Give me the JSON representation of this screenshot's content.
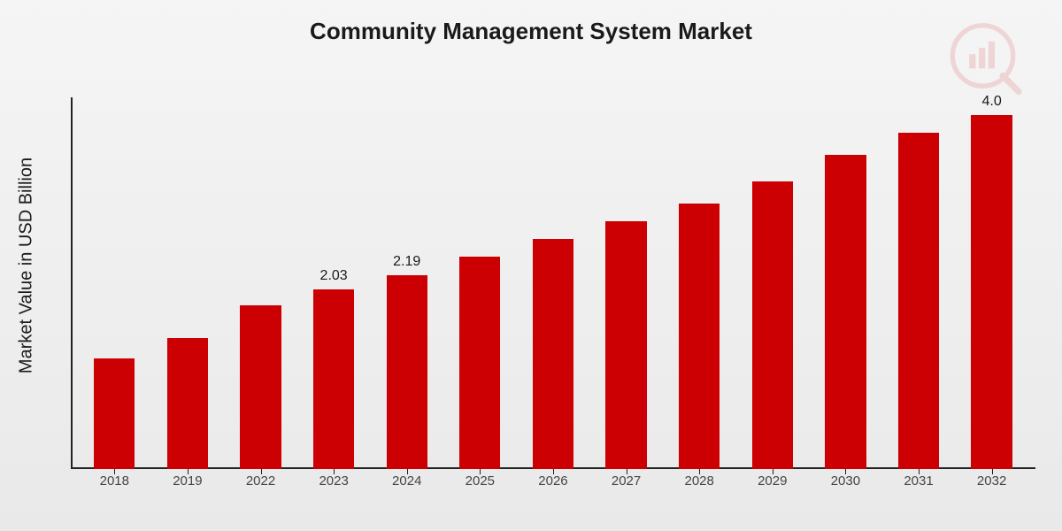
{
  "chart": {
    "type": "bar",
    "title": "Community Management System Market",
    "ylabel": "Market Value in USD Billion",
    "background_gradient": [
      "#f5f5f5",
      "#e9e9e9"
    ],
    "title_fontsize": 26,
    "title_color": "#1a1a1a",
    "ylabel_fontsize": 20,
    "axis_color": "#222222",
    "bar_color": "#cc0003",
    "bar_width_ratio": 0.56,
    "ymax": 4.2,
    "value_label_fontsize": 16,
    "xtick_fontsize": 15,
    "xtick_color": "#444444",
    "categories": [
      "2018",
      "2019",
      "2022",
      "2023",
      "2024",
      "2025",
      "2026",
      "2027",
      "2028",
      "2029",
      "2030",
      "2031",
      "2032"
    ],
    "values": [
      1.25,
      1.48,
      1.85,
      2.03,
      2.19,
      2.4,
      2.6,
      2.8,
      3.0,
      3.25,
      3.55,
      3.8,
      4.0
    ],
    "value_labels": [
      "",
      "",
      "",
      "2.03",
      "2.19",
      "",
      "",
      "",
      "",
      "",
      "",
      "",
      "4.0"
    ],
    "logo_opacity": 0.12,
    "logo_color": "#cc0003"
  }
}
